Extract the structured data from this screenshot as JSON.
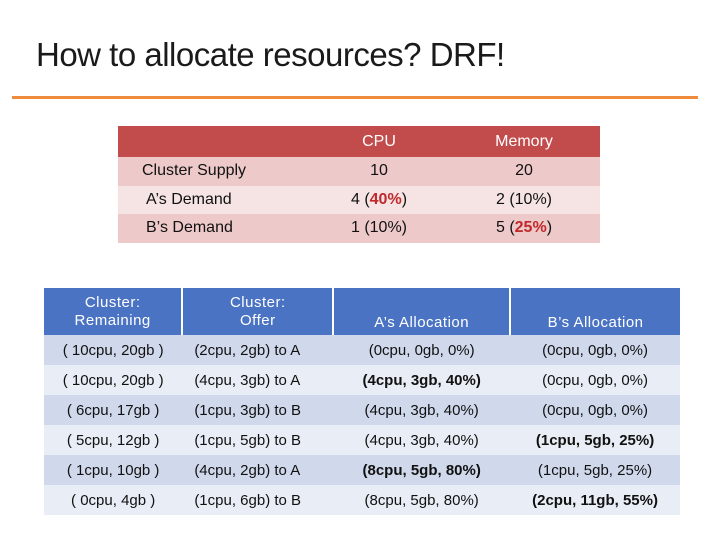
{
  "title": "How to allocate resources?  DRF!",
  "colors": {
    "accent_rule": "#ef8b3a",
    "top_header": "#c24b4b",
    "bottom_header": "#4a73c4",
    "highlight": "#d02020"
  },
  "top_table": {
    "headers": [
      "",
      "CPU",
      "Memory"
    ],
    "supply": {
      "label": "Cluster Supply",
      "cpu": "10",
      "memory": "20"
    },
    "a_demand": {
      "label": "A’s Demand",
      "cpu_pre": "4 (",
      "cpu_hl": "40%",
      "cpu_post": ")",
      "memory": "2 (10%)"
    },
    "b_demand": {
      "label": "B’s Demand",
      "cpu": "1 (10%)",
      "mem_pre": "5 (",
      "mem_hl": "25%",
      "mem_post": ")"
    }
  },
  "bottom_table": {
    "headers": {
      "remaining_1": "Cluster:",
      "remaining_2": "Remaining",
      "offer_1": "Cluster:",
      "offer_2": "Offer",
      "a_alloc": "A’s Allocation",
      "b_alloc": "B’s Allocation"
    },
    "rows": [
      {
        "remaining": "( 10cpu, 20gb )",
        "offer": "(2cpu, 2gb) to A",
        "a": "(0cpu, 0gb, 0%)",
        "a_hl": false,
        "b": "(0cpu, 0gb, 0%)",
        "b_hl": false
      },
      {
        "remaining": "( 10cpu, 20gb )",
        "offer": "(4cpu, 3gb) to A",
        "a": "(4cpu, 3gb, 40%)",
        "a_hl": true,
        "b": "(0cpu, 0gb, 0%)",
        "b_hl": false
      },
      {
        "remaining": "( 6cpu, 17gb )",
        "offer": "(1cpu, 3gb) to B",
        "a": "(4cpu, 3gb, 40%)",
        "a_hl": false,
        "b": "(0cpu, 0gb, 0%)",
        "b_hl": false
      },
      {
        "remaining": "( 5cpu, 12gb )",
        "offer": "(1cpu, 5gb) to B",
        "a": "(4cpu, 3gb, 40%)",
        "a_hl": false,
        "b": "(1cpu, 5gb, 25%)",
        "b_hl": true
      },
      {
        "remaining": "( 1cpu, 10gb )",
        "offer": "(4cpu, 2gb) to A",
        "a": "(8cpu, 5gb, 80%)",
        "a_hl": true,
        "b": "(1cpu, 5gb, 25%)",
        "b_hl": false
      },
      {
        "remaining": "( 0cpu, 4gb )",
        "offer": "(1cpu, 6gb) to B",
        "a": "(8cpu, 5gb, 80%)",
        "a_hl": false,
        "b": "(2cpu, 11gb, 55%)",
        "b_hl": true
      }
    ]
  }
}
